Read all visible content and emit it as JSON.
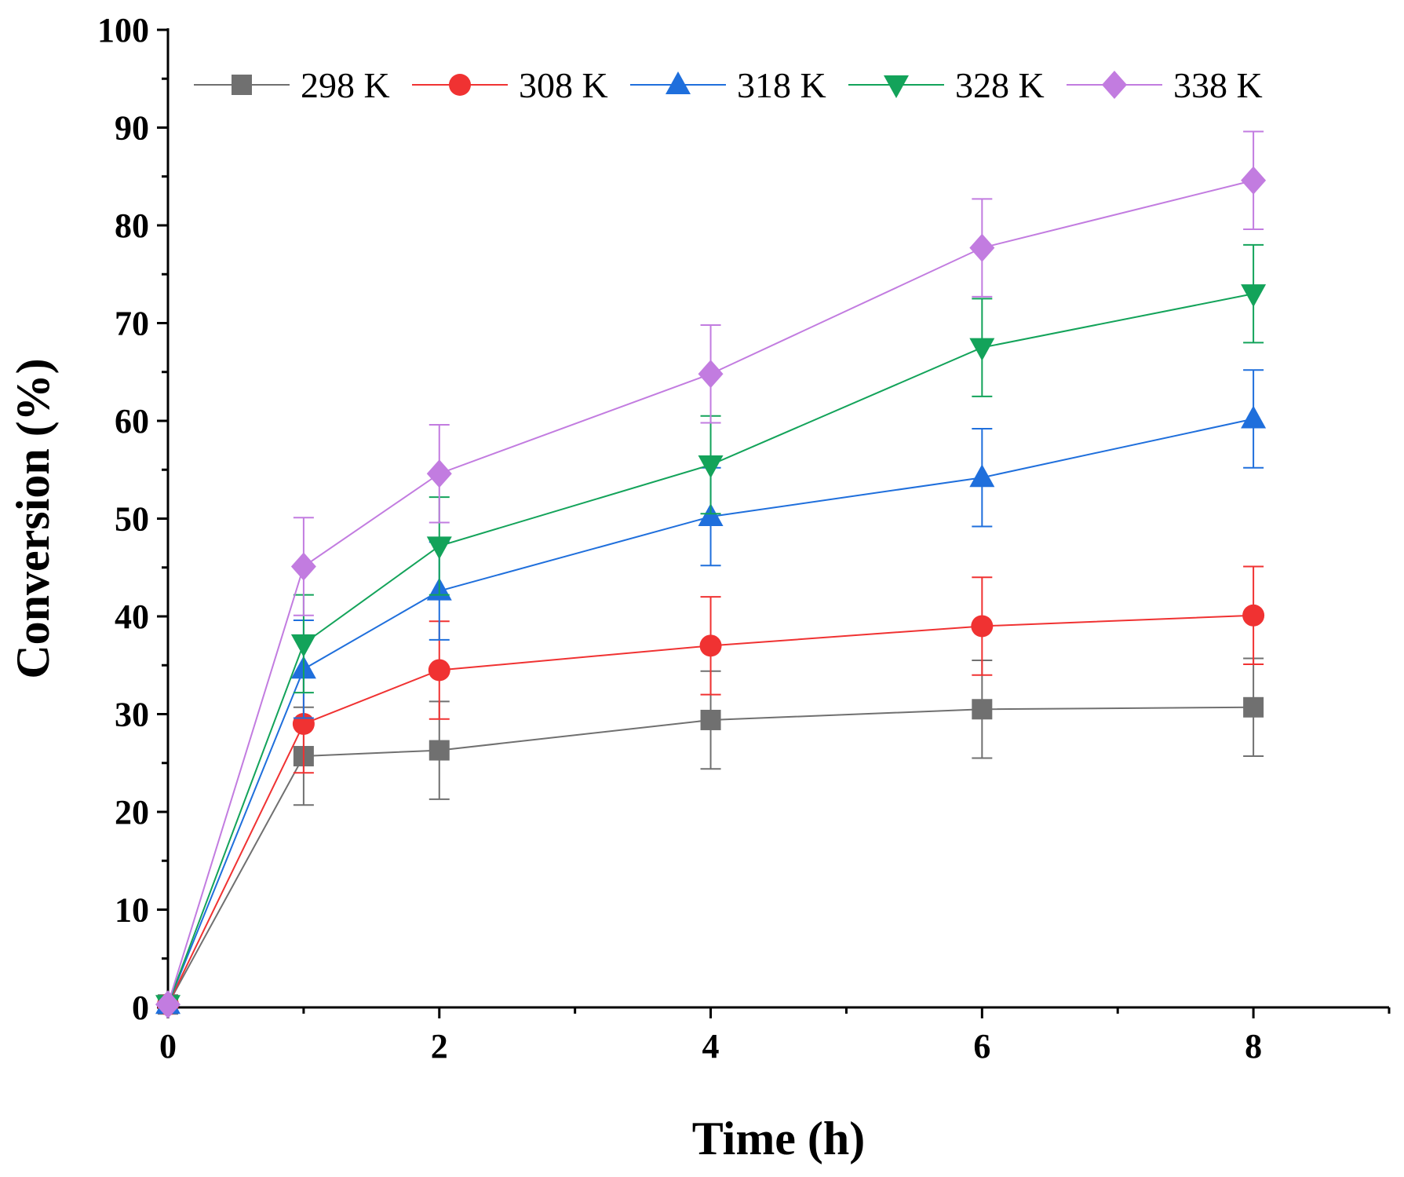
{
  "chart_data": {
    "type": "line",
    "xlabel": "Time (h)",
    "ylabel": "Conversion (%)",
    "xlim": [
      0,
      9
    ],
    "ylim": [
      0,
      100
    ],
    "x_ticks": [
      0,
      2,
      4,
      6,
      8
    ],
    "x_minor_ticks": [
      1,
      3,
      5,
      7,
      9
    ],
    "y_ticks": [
      0,
      10,
      20,
      30,
      40,
      50,
      60,
      70,
      80,
      90,
      100
    ],
    "legend_position": "top",
    "grid": false,
    "x": [
      0,
      1,
      2,
      4,
      6,
      8
    ],
    "series": [
      {
        "name": "298 K",
        "color": "#707070",
        "marker": "square",
        "values": [
          0.3,
          25.7,
          26.3,
          29.4,
          30.5,
          30.7
        ],
        "errors": [
          0,
          5,
          5,
          5,
          5,
          5
        ]
      },
      {
        "name": "308 K",
        "color": "#f03232",
        "marker": "circle",
        "values": [
          0.3,
          29.0,
          34.5,
          37.0,
          39.0,
          40.1
        ],
        "errors": [
          0,
          5,
          5,
          5,
          5,
          5
        ]
      },
      {
        "name": "318 K",
        "color": "#1f6fdc",
        "marker": "triangle-up",
        "values": [
          0.3,
          34.6,
          42.6,
          50.2,
          54.2,
          60.2
        ],
        "errors": [
          0,
          5,
          5,
          5,
          5,
          5
        ]
      },
      {
        "name": "328 K",
        "color": "#13a35a",
        "marker": "triangle-down",
        "values": [
          0.3,
          37.2,
          47.2,
          55.5,
          67.5,
          73.0
        ],
        "errors": [
          0,
          5,
          5,
          5,
          5,
          5
        ]
      },
      {
        "name": "338 K",
        "color": "#c27ce0",
        "marker": "diamond",
        "values": [
          0.3,
          45.1,
          54.6,
          64.8,
          77.7,
          84.6
        ],
        "errors": [
          0,
          5,
          5,
          5,
          5,
          5
        ]
      }
    ]
  }
}
